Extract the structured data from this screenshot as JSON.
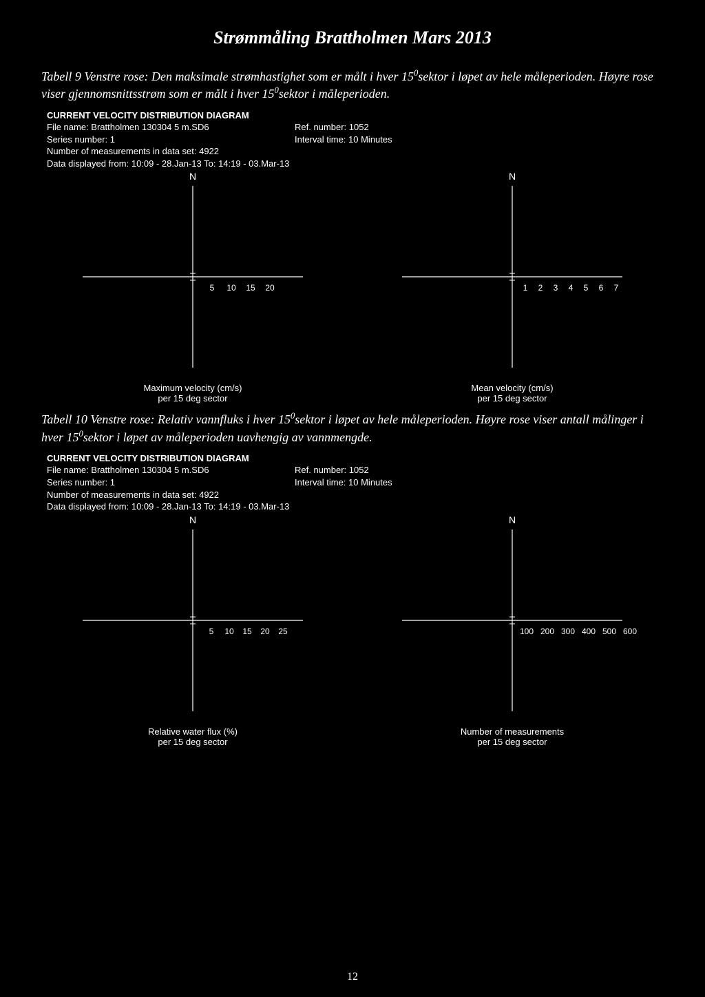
{
  "page": {
    "title": "Strømmåling Brattholmen Mars 2013",
    "number": "12"
  },
  "section1": {
    "caption_pre": "Tabell 9 Venstre rose: Den maksimale strømhastighet som er målt i hver 15",
    "caption_mid1": "sektor i løpet av hele måleperioden. Høyre rose viser gjennomsnittsstrøm som er målt i hver 15",
    "caption_post": "sektor i måleperioden.",
    "sup": "0",
    "meta": {
      "title": "CURRENT VELOCITY DISTRIBUTION DIAGRAM",
      "file": "File name: Brattholmen 130304 5 m.SD6",
      "ref": "Ref. number: 1052",
      "series": "Series number: 1",
      "interval": "Interval time: 10 Minutes",
      "nmeas": "Number of measurements in data set: 4922",
      "period": "Data displayed from: 10:09 - 28.Jan-13   To: 14:19 - 03.Mar-13"
    },
    "left_rose": {
      "n": "N",
      "ticks": [
        "5",
        "10",
        "15",
        "20"
      ],
      "tick_gap": 28,
      "caption1": "Maximum velocity (cm/s)",
      "caption2": "per 15 deg sector",
      "axis_color": "#ffffff"
    },
    "right_rose": {
      "n": "N",
      "ticks": [
        "1",
        "2",
        "3",
        "4",
        "5",
        "6",
        "7"
      ],
      "tick_gap": 22,
      "caption1": "Mean velocity (cm/s)",
      "caption2": "per 15 deg sector",
      "axis_color": "#ffffff"
    }
  },
  "section2": {
    "caption_pre": "Tabell 10 Venstre rose: Relativ vannfluks i hver 15",
    "caption_mid1": "sektor i løpet av hele måleperioden. Høyre rose viser antall målinger i hver 15",
    "caption_post": "sektor i løpet av måleperioden uavhengig av vannmengde.",
    "sup": "0",
    "meta": {
      "title": "CURRENT VELOCITY DISTRIBUTION DIAGRAM",
      "file": "File name: Brattholmen 130304 5 m.SD6",
      "ref": "Ref. number: 1052",
      "series": "Series number: 1",
      "interval": "Interval time: 10 Minutes",
      "nmeas": "Number of measurements in data set: 4922",
      "period": "Data displayed from: 10:09 - 28.Jan-13   To: 14:19 - 03.Mar-13"
    },
    "left_rose": {
      "n": "N",
      "ticks": [
        "5",
        "10",
        "15",
        "20",
        "25"
      ],
      "tick_gap": 26,
      "caption1": "Relative water flux (%)",
      "caption2": "per 15 deg sector",
      "axis_color": "#ffffff"
    },
    "right_rose": {
      "n": "N",
      "ticks": [
        "100",
        "200",
        "300",
        "400",
        "500",
        "600"
      ],
      "tick_gap": 30,
      "caption1": "Number of measurements",
      "caption2": "per 15 deg sector",
      "axis_color": "#ffffff"
    }
  },
  "rose_style": {
    "svg_size": 300,
    "line_color": "#ffffff",
    "line_width": 1.2,
    "background": "#000000"
  }
}
